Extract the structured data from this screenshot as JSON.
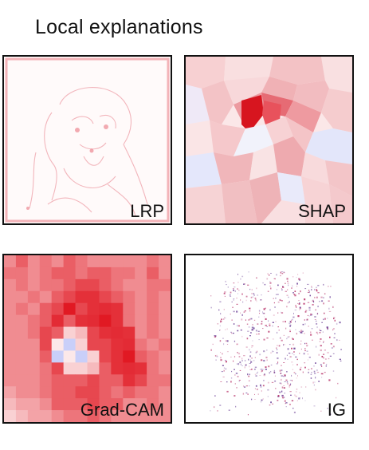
{
  "title": "Local explanations",
  "panels": [
    {
      "id": "lrp",
      "label": "LRP"
    },
    {
      "id": "shap",
      "label": "SHAP"
    },
    {
      "id": "grad_cam",
      "label": "Grad-CAM"
    },
    {
      "id": "ig",
      "label": "IG"
    }
  ],
  "colors": {
    "positive": "#e8202a",
    "negative": "#a8aef0",
    "neutral": "#ffffff",
    "ig_pos": "#b01e5a",
    "ig_neg": "#5a2a8a",
    "border": "#111111"
  }
}
